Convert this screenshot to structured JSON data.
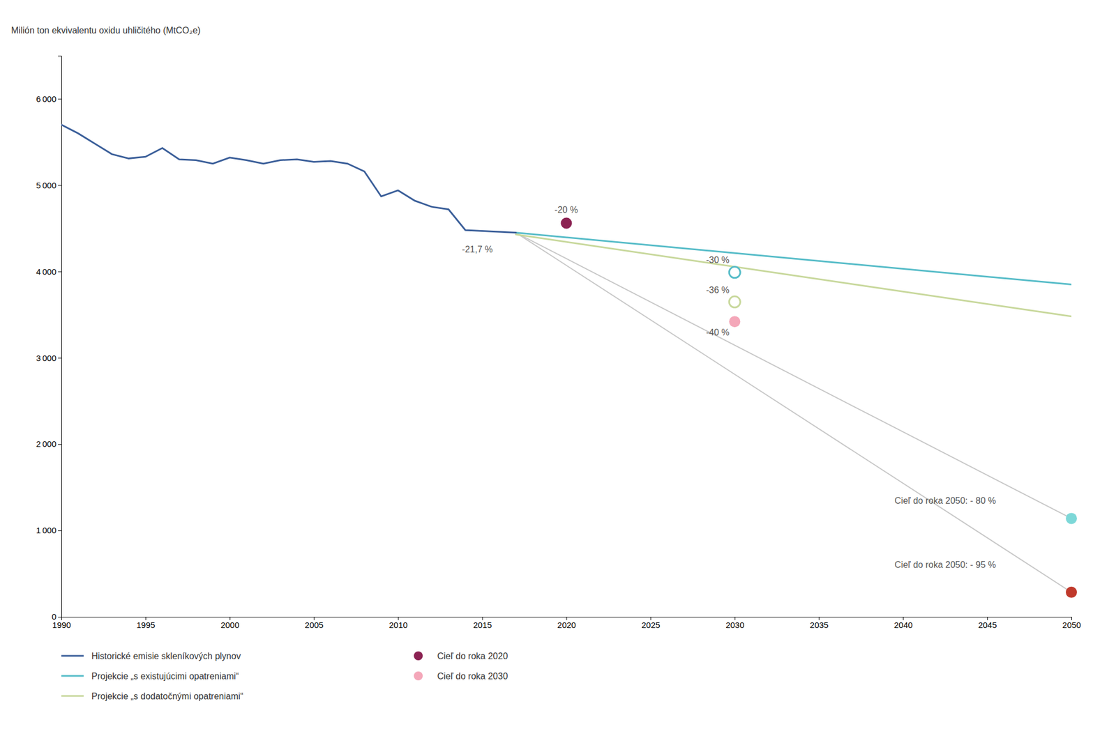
{
  "chart_data": {
    "type": "line",
    "ylabel": "Milión ton ekvivalentu oxidu uhličitého (MtCO₂e)",
    "xlim": [
      1990,
      2050
    ],
    "ylim": [
      0,
      6500
    ],
    "xticks": [
      1990,
      1995,
      2000,
      2005,
      2010,
      2015,
      2020,
      2025,
      2030,
      2035,
      2040,
      2045,
      2050
    ],
    "yticks": [
      0,
      {
        "value": 1000,
        "label": "1 000"
      },
      {
        "value": 2000,
        "label": "2 000"
      },
      {
        "value": 3000,
        "label": "3 000"
      },
      {
        "value": 4000,
        "label": "4 000"
      },
      {
        "value": 5000,
        "label": "5 000"
      },
      {
        "value": 6000,
        "label": "6 000"
      }
    ],
    "grid": false,
    "legend": "bottom",
    "series": [
      {
        "name": "Historické emisie skleníkových plynov",
        "color": "#3A5E99",
        "x": [
          1990,
          1991,
          1992,
          1993,
          1994,
          1995,
          1996,
          1997,
          1998,
          1999,
          2000,
          2001,
          2002,
          2003,
          2004,
          2005,
          2006,
          2007,
          2008,
          2009,
          2010,
          2011,
          2012,
          2013,
          2014,
          2015,
          2016,
          2017
        ],
        "values": [
          5700,
          5600,
          5480,
          5360,
          5310,
          5330,
          5430,
          5300,
          5290,
          5250,
          5320,
          5290,
          5250,
          5290,
          5300,
          5270,
          5280,
          5250,
          5160,
          4870,
          4940,
          4820,
          4750,
          4720,
          4480,
          4470,
          4460,
          4450
        ]
      },
      {
        "name": "Projekcie „s existujúcimi opatreniami“",
        "color": "#56BCC8",
        "x": [
          2017,
          2050
        ],
        "values": [
          4450,
          3850
        ]
      },
      {
        "name": "Projekcie „s dodatočnými opatreniami“",
        "color": "#C8D89C",
        "x": [
          2017,
          2050
        ],
        "values": [
          4430,
          3480
        ]
      },
      {
        "name": "Cieľ do roka 2020",
        "type": "scatter",
        "color": "#8B2252",
        "x": [
          2020
        ],
        "values": [
          4560
        ]
      },
      {
        "name": "Cieľ do roka 2030",
        "type": "scatter",
        "color": "#F4A7B9",
        "x": [
          2030
        ],
        "values": [
          3420
        ]
      },
      {
        "color": "#C8C8C8",
        "x": [
          2017,
          2050
        ],
        "values": [
          4450,
          1140
        ]
      },
      {
        "color": "#C8C8C8",
        "x": [
          2017,
          2050
        ],
        "values": [
          4450,
          285
        ]
      },
      {
        "type": "scatter",
        "marker": "open",
        "color": "#56BCC8",
        "x": [
          2030
        ],
        "values": [
          3990
        ]
      },
      {
        "type": "scatter",
        "marker": "open",
        "color": "#C8D89C",
        "x": [
          2030
        ],
        "values": [
          3648
        ]
      },
      {
        "type": "scatter",
        "color": "#7DD8D8",
        "x": [
          2050
        ],
        "values": [
          1140
        ]
      },
      {
        "type": "scatter",
        "color": "#C0392B",
        "x": [
          2050
        ],
        "values": [
          285
        ]
      }
    ],
    "annotations": [
      {
        "text": "-21,7 %",
        "x": 2013.8,
        "y": 4220
      },
      {
        "text": "-20 %",
        "x": 2019.3,
        "y": 4680
      },
      {
        "text": "-30 %",
        "x": 2028.3,
        "y": 4100
      },
      {
        "text": "-36 %",
        "x": 2028.3,
        "y": 3750
      },
      {
        "text": "-40 %",
        "x": 2028.3,
        "y": 3260
      },
      {
        "text": "Cieľ do roka 2050: - 80 %",
        "x": 2039.5,
        "y": 1310
      },
      {
        "text": "Cieľ do roka 2050: - 95 %",
        "x": 2039.5,
        "y": 570
      }
    ]
  }
}
